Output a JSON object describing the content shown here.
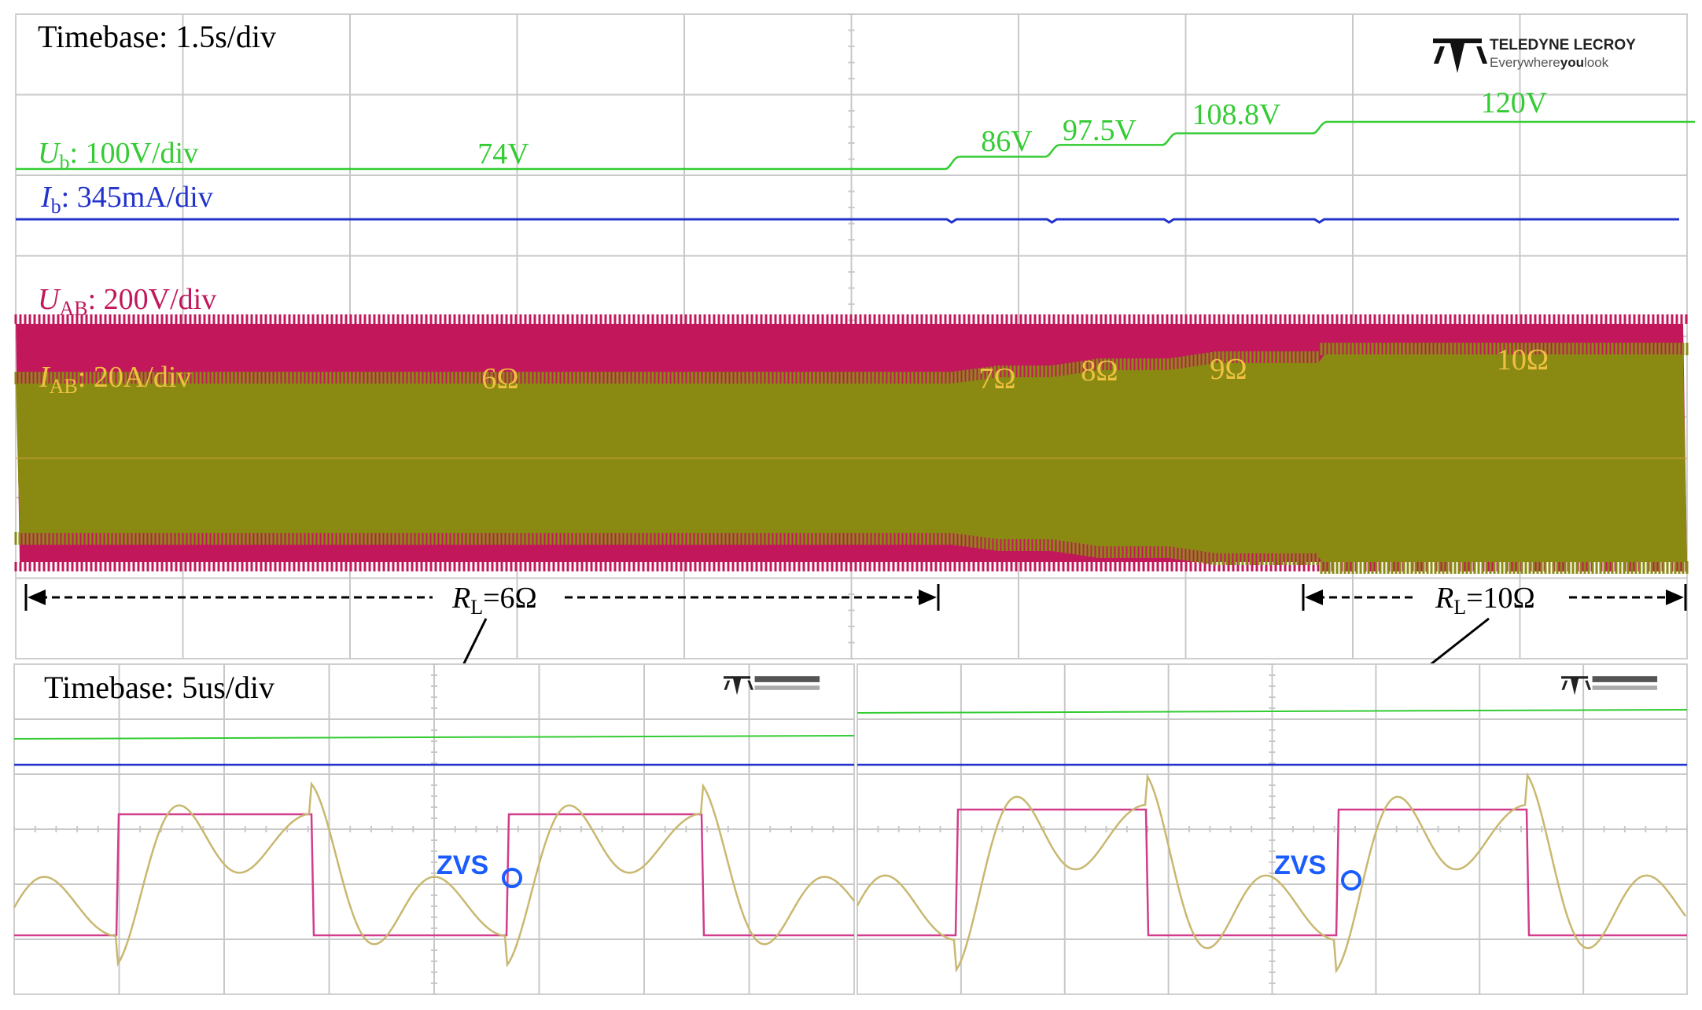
{
  "brand": {
    "name": "TELEDYNE LECROY",
    "tagline_pre": "Everywhere",
    "tagline_bold": "you",
    "tagline_post": "look"
  },
  "colors": {
    "ub": "#33cc33",
    "ib": "#2233cc",
    "uab": "#c2185b",
    "iab": "#8a8a12",
    "iab_label": "#f0c040",
    "zvs": "#1a5cff",
    "grid": "#c8c8c8"
  },
  "top": {
    "timebase": "Timebase: 1.5s/div",
    "ub_label": {
      "sym": "U",
      "sub": "b",
      "rest": ": 100V/div"
    },
    "ib_label": {
      "sym": "I",
      "sub": "b",
      "rest": ": 345mA/div"
    },
    "uab_label": {
      "sym": "U",
      "sub": "AB",
      "rest": ": 200V/div"
    },
    "iab_label": {
      "sym": "I",
      "sub": "AB",
      "rest": ": 20A/div"
    },
    "range_left": {
      "sym": "R",
      "sub": "L",
      "rest": "=6Ω"
    },
    "range_right": {
      "sym": "R",
      "sub": "L",
      "rest": "=10Ω"
    }
  },
  "bottom": {
    "timebase": "Timebase: 5us/div",
    "zvs": "ZVS"
  },
  "chart_data": [
    {
      "type": "line",
      "title": "Timebase: 1.5s/div",
      "x_unit": "div",
      "xlim": [
        0,
        10
      ],
      "series": [
        {
          "name": "Ub",
          "x": [
            0,
            5.6,
            6.2,
            6.9,
            7.8,
            10
          ],
          "y": [
            74,
            86,
            97.5,
            108.8,
            120,
            120
          ],
          "step": true
        },
        {
          "name": "IAB",
          "x": [
            0,
            5.6,
            6.2,
            6.9,
            7.8,
            10
          ],
          "y": [
            "6Ω",
            "7Ω",
            "8Ω",
            "9Ω",
            "10Ω",
            "10Ω"
          ]
        }
      ],
      "annotations": {
        "ub_values": [
          "74V",
          "86V",
          "97.5V",
          "108.8V",
          "120V"
        ],
        "load_values": [
          "6Ω",
          "7Ω",
          "8Ω",
          "9Ω",
          "10Ω"
        ]
      }
    },
    {
      "type": "line",
      "title": "Timebase: 5us/div",
      "panels": [
        "RL=6Ω",
        "RL=10Ω"
      ],
      "annotations": [
        "ZVS",
        "ZVS"
      ]
    }
  ]
}
